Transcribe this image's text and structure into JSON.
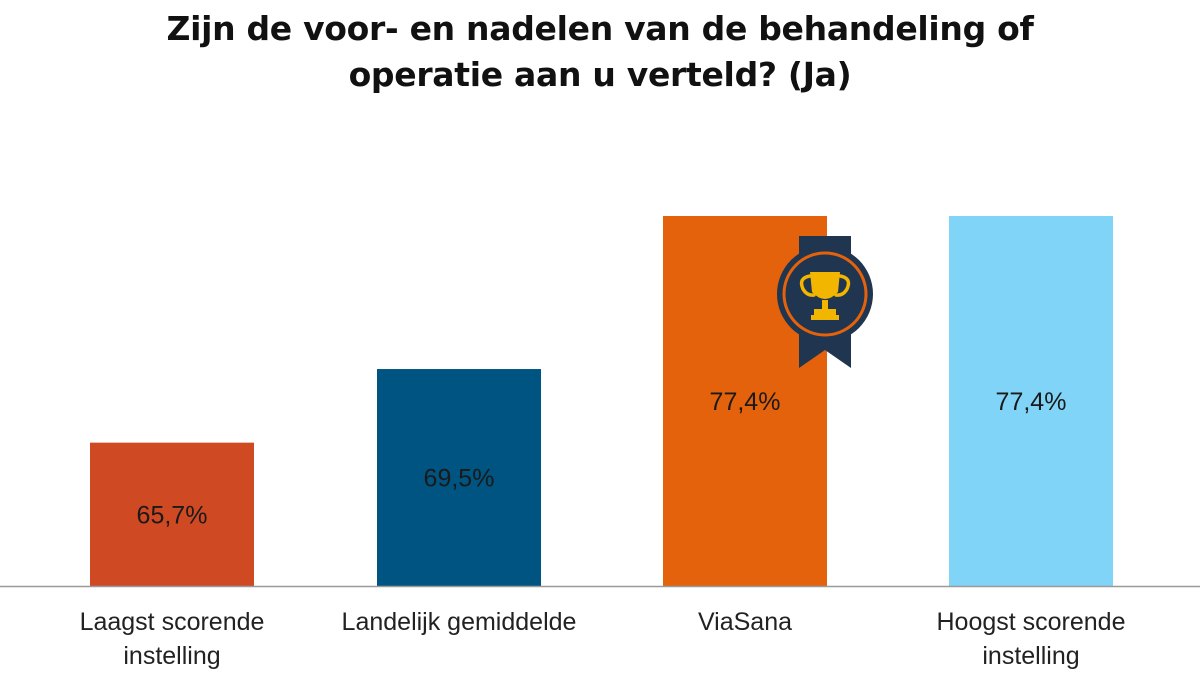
{
  "chart_data": {
    "type": "bar",
    "title": "Zijn de voor- en nadelen van de behandeling of operatie aan u verteld? (Ja)",
    "title_lines": [
      "Zijn de voor- en nadelen van de behandeling of",
      "operatie aan u verteld? (Ja)"
    ],
    "categories": [
      [
        "Laagst scorende",
        "instelling"
      ],
      [
        "Landelijk gemiddelde"
      ],
      [
        "ViaSana"
      ],
      [
        "Hoogst scorende",
        "instelling"
      ]
    ],
    "values": [
      65.7,
      69.5,
      77.4,
      77.4
    ],
    "value_labels": [
      "65,7%",
      "69,5%",
      "77,4%",
      "77,4%"
    ],
    "colors": [
      "#cf4a22",
      "#005482",
      "#e3620b",
      "#80d4f8"
    ],
    "ylim": [
      58.3,
      77.4
    ],
    "xlabel": "",
    "ylabel": "",
    "grid": false,
    "legend": "none",
    "annotations": [
      {
        "category_index": 2,
        "icon": "trophy-ribbon-icon"
      }
    ]
  }
}
